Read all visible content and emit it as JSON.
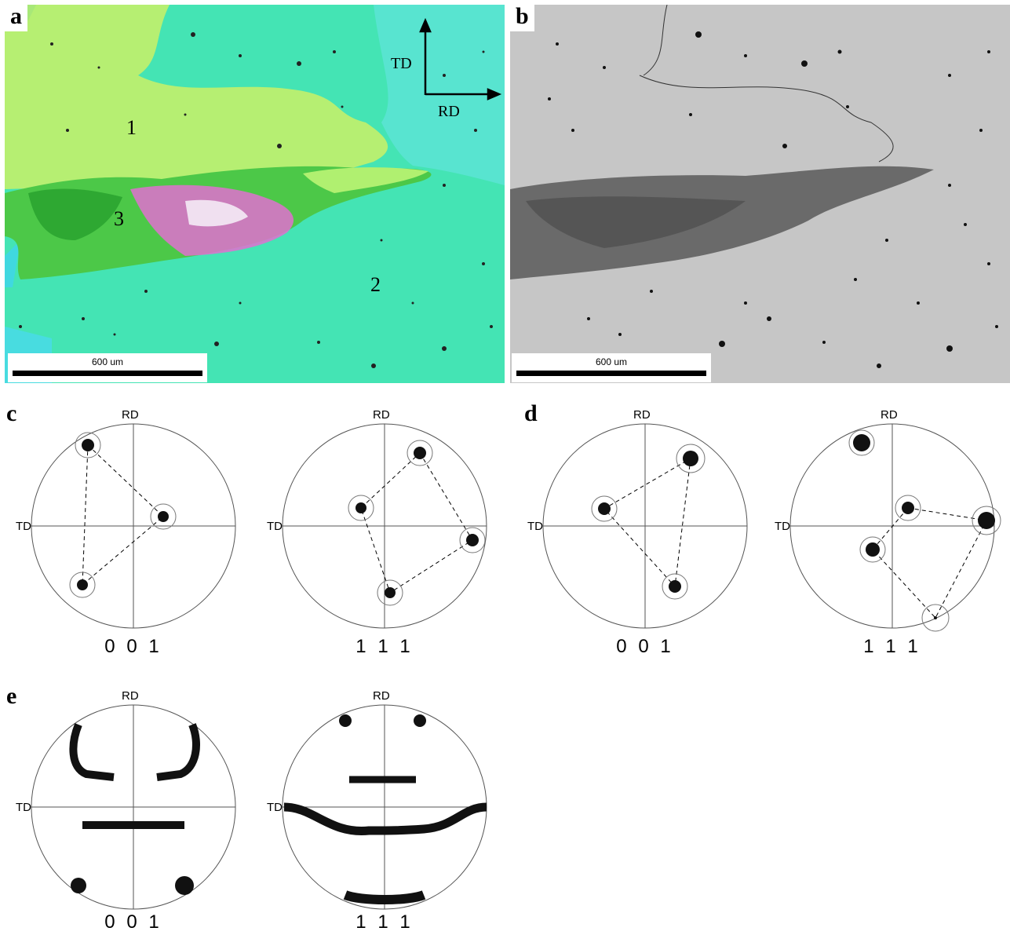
{
  "panels": {
    "a": {
      "letter": "a",
      "grain_labels": [
        "1",
        "2",
        "3"
      ],
      "axis_td": "TD",
      "axis_rd": "RD",
      "scale_label": "600 um"
    },
    "b": {
      "letter": "b",
      "scale_label": "600 um"
    },
    "c": {
      "letter": "c"
    },
    "d": {
      "letter": "d"
    },
    "e": {
      "letter": "e"
    }
  },
  "pole_figures": {
    "rd_label": "RD",
    "td_label": "TD",
    "titles": {
      "c1": "0 0 1",
      "c2": "1 1 1",
      "d1": "0 0 1",
      "d2": "1 1 1",
      "e1": "0 0 1",
      "e2": "1 1 1"
    }
  },
  "colors": {
    "grain1": "#b8f070",
    "grain2": "#40e8b0",
    "cyan_region": "#50e8d8",
    "band_green": "#40c040",
    "band_magenta": "#e070d0",
    "sem_gray": "#c8c8c8"
  }
}
